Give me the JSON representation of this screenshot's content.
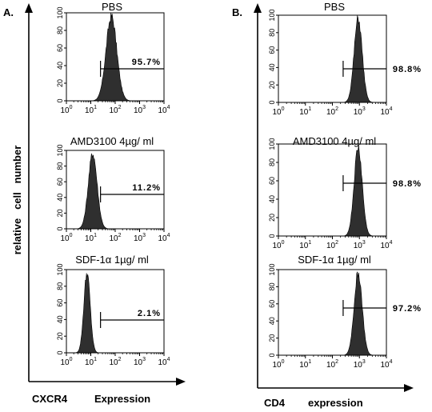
{
  "panel_a": {
    "letter": "A.",
    "ylabel": "relative   cell   number",
    "xlabel_marker": "CXCR4",
    "xlabel_text": "Expression"
  },
  "panel_b": {
    "letter": "B.",
    "xlabel_marker": "CD4",
    "xlabel_text": "expression"
  },
  "colors": {
    "fill": "#2f2f2f",
    "axis": "#000000"
  },
  "chart_data": [
    {
      "type": "area",
      "panel": "A",
      "title": "PBS",
      "xscale": "log",
      "xlim": [
        1,
        10000
      ],
      "ylim": [
        0,
        100
      ],
      "yticks": [
        0,
        20,
        40,
        60,
        80,
        100
      ],
      "xticks": [
        "10^0",
        "10^1",
        "10^2",
        "10^3",
        "10^4"
      ],
      "peak_x": 70,
      "log_sd": 0.22,
      "marker_start": 25,
      "percentage": "95.7%"
    },
    {
      "type": "area",
      "panel": "A",
      "title": "AMD3100  4µg/ ml",
      "xscale": "log",
      "xlim": [
        1,
        10000
      ],
      "ylim": [
        0,
        100
      ],
      "yticks": [
        0,
        20,
        40,
        60,
        80,
        100
      ],
      "xticks": [
        "10^0",
        "10^1",
        "10^2",
        "10^3",
        "10^4"
      ],
      "peak_x": 12,
      "log_sd": 0.18,
      "marker_start": 25,
      "percentage": "11.2%"
    },
    {
      "type": "area",
      "panel": "A",
      "title": "SDF-1α  1µg/ ml",
      "xscale": "log",
      "xlim": [
        1,
        10000
      ],
      "ylim": [
        0,
        100
      ],
      "yticks": [
        0,
        20,
        40,
        60,
        80,
        100
      ],
      "xticks": [
        "10^0",
        "10^1",
        "10^2",
        "10^3",
        "10^4"
      ],
      "peak_x": 7,
      "log_sd": 0.13,
      "marker_start": 25,
      "percentage": "2.1%"
    },
    {
      "type": "area",
      "panel": "B",
      "title": "PBS",
      "xscale": "log",
      "xlim": [
        1,
        10000
      ],
      "ylim": [
        0,
        100
      ],
      "yticks": [
        0,
        20,
        40,
        60,
        80,
        100
      ],
      "xticks": [
        "10^0",
        "10^1",
        "10^2",
        "10^3",
        "10^4"
      ],
      "peak_x": 900,
      "log_sd": 0.15,
      "marker_start": 250,
      "percentage": "98.8%"
    },
    {
      "type": "area",
      "panel": "B",
      "title": "AMD3100  4µg/ ml",
      "xscale": "log",
      "xlim": [
        1,
        10000
      ],
      "ylim": [
        0,
        100
      ],
      "yticks": [
        0,
        20,
        40,
        60,
        80,
        100
      ],
      "xticks": [
        "10^0",
        "10^1",
        "10^2",
        "10^3",
        "10^4"
      ],
      "peak_x": 900,
      "log_sd": 0.15,
      "marker_start": 250,
      "percentage": "98.8%"
    },
    {
      "type": "area",
      "panel": "B",
      "title": "SDF-1α  1µg/ ml",
      "xscale": "log",
      "xlim": [
        1,
        10000
      ],
      "ylim": [
        0,
        100
      ],
      "yticks": [
        0,
        20,
        40,
        60,
        80,
        100
      ],
      "xticks": [
        "10^0",
        "10^1",
        "10^2",
        "10^3",
        "10^4"
      ],
      "peak_x": 900,
      "log_sd": 0.15,
      "marker_start": 250,
      "percentage": "97.2%"
    }
  ]
}
